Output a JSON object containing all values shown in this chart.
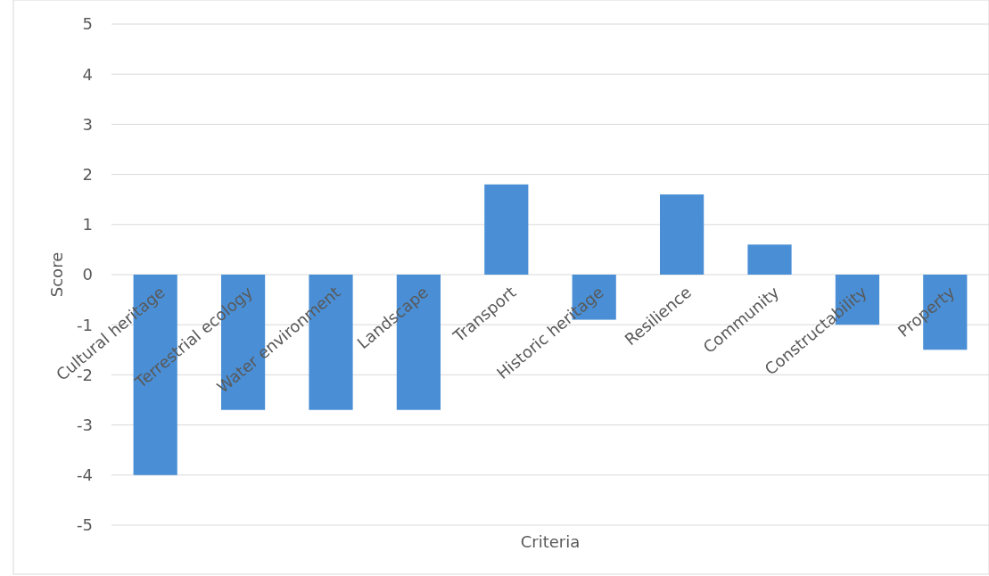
{
  "chart_data": {
    "type": "bar",
    "xlabel": "Criteria",
    "ylabel": "Score",
    "categories": [
      "Cultural heritage",
      "Terrestrial ecology",
      "Water environment",
      "Landscape",
      "Transport",
      "Historic heritage",
      "Resilience",
      "Community",
      "Constructability",
      "Property"
    ],
    "values": [
      -4,
      -2.7,
      -2.7,
      -2.7,
      1.8,
      -0.9,
      1.6,
      0.6,
      -1.0,
      -1.5
    ],
    "color": "#4a8fd6",
    "ylim": [
      -5,
      5
    ],
    "yticks": [
      -5,
      -4,
      -3,
      -2,
      -1,
      0,
      1,
      2,
      3,
      4,
      5
    ],
    "grid": "y"
  }
}
